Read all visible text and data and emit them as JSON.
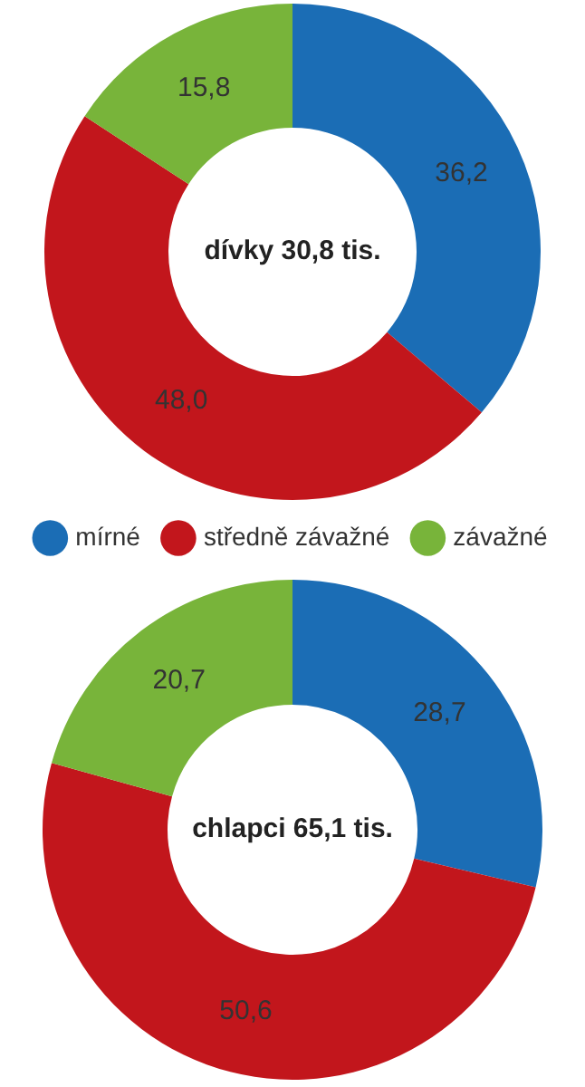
{
  "chart_data": [
    {
      "type": "donut",
      "categories": [
        "mírné",
        "středně závažné",
        "závažné"
      ],
      "values": [
        36.2,
        48.0,
        15.8
      ],
      "value_labels": [
        "36,2",
        "48,0",
        "15,8"
      ],
      "colors": [
        "#1b6db5",
        "#c2161c",
        "#78b43a"
      ],
      "annotations": [
        "dívky 30,8 tis."
      ],
      "legend": "bottom"
    },
    {
      "type": "donut",
      "categories": [
        null,
        null,
        null
      ],
      "values": [
        28.7,
        50.6,
        20.7
      ],
      "value_labels": [
        "28,7",
        "50,6",
        "20,7"
      ],
      "colors": [
        "#1b6db5",
        "#c2161c",
        "#78b43a"
      ],
      "annotations": [
        "chlapci 65,1 tis."
      ],
      "legend": false
    }
  ]
}
